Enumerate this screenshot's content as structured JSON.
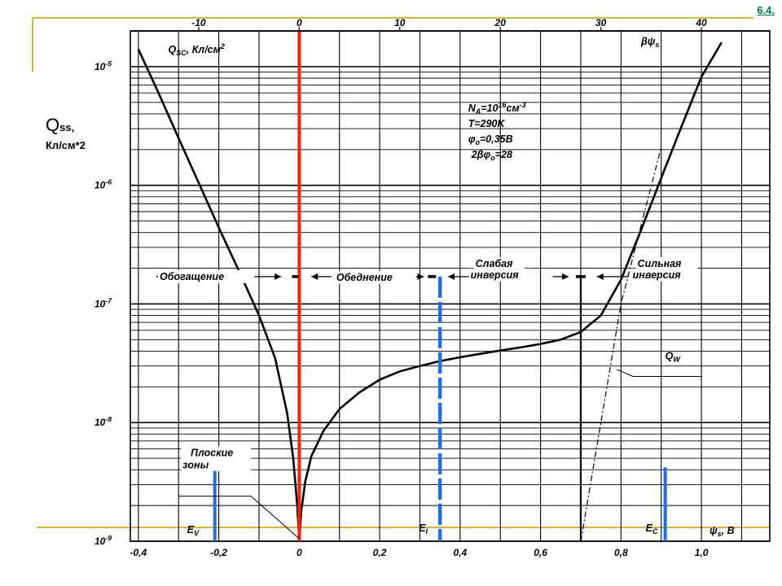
{
  "slide": {
    "link_label": "6.4."
  },
  "side_label": {
    "main": "Q",
    "main_sub": "ss,",
    "units": "Кл/см*2"
  },
  "chart_data": {
    "type": "line",
    "title": "",
    "x_axis_bottom": {
      "label": "ψ",
      "label_sub": "s",
      "label_suffix": ", В",
      "range": [
        -0.42,
        1.17
      ],
      "ticks": [
        -0.4,
        -0.2,
        0,
        0.2,
        0.4,
        0.6,
        0.8,
        1.0
      ],
      "tick_labels": [
        "-0,4",
        "-0,2",
        "0",
        "0,2",
        "0,4",
        "0,6",
        "0,8",
        "1,0"
      ]
    },
    "x_axis_top": {
      "label": "βψ",
      "label_sub": "s",
      "ticks": [
        -10,
        0,
        10,
        20,
        30,
        40
      ],
      "tick_labels": [
        "-10",
        "0",
        "10",
        "20",
        "30",
        "40"
      ]
    },
    "y_axis": {
      "label": "Q",
      "label_sub": "SC",
      "label_suffix": ", Кл/см",
      "label_sup": "2",
      "scale": "log",
      "range": [
        1e-09,
        2e-05
      ],
      "ticks": [
        1e-09,
        1e-08,
        1e-07,
        1e-06,
        1e-05
      ],
      "tick_labels": [
        {
          "base": "10",
          "exp": "-9"
        },
        {
          "base": "10",
          "exp": "-8"
        },
        {
          "base": "10",
          "exp": "-7"
        },
        {
          "base": "10",
          "exp": "-6"
        },
        {
          "base": "10",
          "exp": "-5"
        }
      ]
    },
    "grid": true,
    "params": [
      {
        "main": "N",
        "sub": "A",
        "mid": "=10",
        "sup": "16",
        "tail": "см",
        "sup2": "-3"
      },
      {
        "main": "T=290K"
      },
      {
        "main": "φ",
        "sub": "o",
        "mid": "=0,35В"
      },
      {
        "main": "2βφ",
        "sub": "o",
        "mid": "=28"
      }
    ],
    "regions": [
      {
        "label": "Обогащение"
      },
      {
        "label": "Обеднение"
      },
      {
        "label": "Слабая",
        "label2": "инверсия"
      },
      {
        "label": "Сильная",
        "label2": "инверсия"
      }
    ],
    "levels": [
      {
        "label": "E",
        "sub": "V",
        "x": -0.21
      },
      {
        "label": "E",
        "sub": "I",
        "x": 0.35
      },
      {
        "label": "E",
        "sub": "C",
        "x": 0.91
      }
    ],
    "annotations": {
      "flat_band": [
        "Плоские",
        "зоны"
      ],
      "qw": {
        "label": "Q",
        "sub": "W"
      }
    },
    "series": [
      {
        "color": "#000000",
        "points": [
          [
            -0.4,
            1.4e-05
          ],
          [
            -0.35,
            6e-06
          ],
          [
            -0.3,
            2.5e-06
          ],
          [
            -0.25,
            1.05e-06
          ],
          [
            -0.2,
            4.4e-07
          ],
          [
            -0.15,
            1.9e-07
          ],
          [
            -0.1,
            8e-08
          ],
          [
            -0.06,
            3.5e-08
          ],
          [
            -0.03,
            1.2e-08
          ],
          [
            -0.015,
            5e-09
          ],
          [
            -0.005,
            2e-09
          ],
          [
            0.0,
            1e-09
          ],
          [
            0.005,
            1.8e-09
          ],
          [
            0.015,
            3.2e-09
          ],
          [
            0.03,
            5.2e-09
          ],
          [
            0.06,
            8.5e-09
          ],
          [
            0.1,
            1.3e-08
          ],
          [
            0.15,
            1.8e-08
          ],
          [
            0.2,
            2.3e-08
          ],
          [
            0.25,
            2.7e-08
          ],
          [
            0.3,
            3e-08
          ],
          [
            0.35,
            3.3e-08
          ],
          [
            0.4,
            3.55e-08
          ],
          [
            0.45,
            3.8e-08
          ],
          [
            0.5,
            4.05e-08
          ],
          [
            0.55,
            4.3e-08
          ],
          [
            0.6,
            4.6e-08
          ],
          [
            0.65,
            5e-08
          ],
          [
            0.7,
            5.8e-08
          ],
          [
            0.75,
            8e-08
          ],
          [
            0.8,
            1.6e-07
          ],
          [
            0.85,
            4.2e-07
          ],
          [
            0.9,
            1.15e-06
          ],
          [
            0.95,
            3.1e-06
          ],
          [
            1.0,
            8.2e-06
          ],
          [
            1.05,
            1.6e-05
          ]
        ]
      },
      {
        "name": "Q_W",
        "color": "#000000",
        "dashed": true,
        "points": [
          [
            0.7,
            1e-09
          ],
          [
            0.8,
            1e-07
          ],
          [
            0.9,
            2.1e-06
          ]
        ]
      }
    ]
  },
  "colors": {
    "zero_line": "#ff2200",
    "level_line": "#1f6fe0",
    "slide_frame": "#d8b23c",
    "link": "#007a3d"
  }
}
